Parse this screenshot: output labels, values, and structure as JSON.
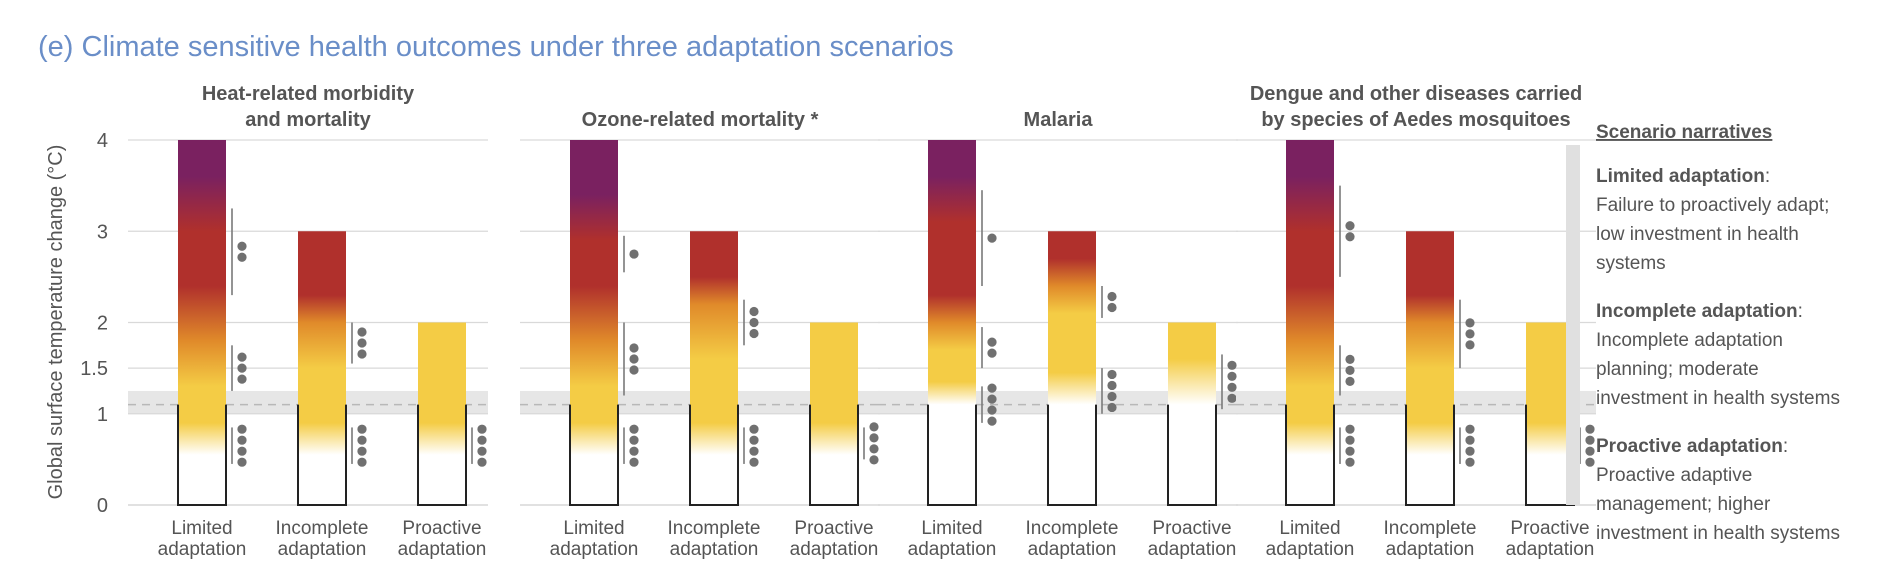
{
  "figure_title": "(e) Climate sensitive health outcomes under three adaptation scenarios",
  "colors": {
    "title": "#6a8ec8",
    "text": "#555555",
    "purple": "#7a2160",
    "red": "#b0302c",
    "orange": "#e08a2a",
    "yellow": "#f4cc45",
    "dots": "#707070",
    "band": "#e6e6e6"
  },
  "legend": {
    "heading": "Scenario narratives",
    "items": [
      {
        "name": "Limited adaptation",
        "suffix": ":",
        "lines": [
          "Failure to proactively adapt;",
          "low investment in health",
          "systems"
        ]
      },
      {
        "name": "Incomplete adaptation",
        "suffix": ":",
        "lines": [
          "Incomplete adaptation",
          "planning; moderate",
          "investment in health systems"
        ]
      },
      {
        "name": "Proactive adaptation",
        "suffix": ":",
        "lines": [
          "Proactive adaptive",
          "management; higher",
          "investment in health systems"
        ]
      }
    ]
  },
  "chart_data": {
    "type": "bar",
    "ylabel": "Global surface temperature change (°C)",
    "yticks": [
      {
        "value": 0,
        "label": "0"
      },
      {
        "value": 1,
        "label": "1"
      },
      {
        "value": 1.5,
        "label": "1.5"
      },
      {
        "value": 2,
        "label": "2"
      },
      {
        "value": 3,
        "label": "3"
      },
      {
        "value": 4,
        "label": "4"
      }
    ],
    "ylim": [
      0,
      4
    ],
    "current_warming": 1.1,
    "current_band": [
      1.0,
      1.25
    ],
    "categories": [
      {
        "l1": "Limited",
        "l2": "adaptation"
      },
      {
        "l1": "Incomplete",
        "l2": "adaptation"
      },
      {
        "l1": "Proactive",
        "l2": "adaptation"
      }
    ],
    "panels": [
      {
        "title_lines": [
          "Heat-related morbidity",
          "and mortality"
        ],
        "bars": [
          {
            "top": 4,
            "stops": [
              {
                "v": 0.55,
                "c": "white"
              },
              {
                "v": 0.9,
                "c": "yellow"
              },
              {
                "v": 1.3,
                "c": "yellow"
              },
              {
                "v": 1.8,
                "c": "orange"
              },
              {
                "v": 2.4,
                "c": "red"
              },
              {
                "v": 3.0,
                "c": "red"
              },
              {
                "v": 3.6,
                "c": "purple"
              },
              {
                "v": 4.0,
                "c": "purple"
              }
            ],
            "conf": [
              {
                "lo": 0.45,
                "hi": 0.85,
                "dots": 4
              },
              {
                "lo": 1.25,
                "hi": 1.75,
                "dots": 3
              },
              {
                "lo": 2.3,
                "hi": 3.25,
                "dots": 2
              }
            ]
          },
          {
            "top": 3,
            "stops": [
              {
                "v": 0.55,
                "c": "white"
              },
              {
                "v": 0.9,
                "c": "yellow"
              },
              {
                "v": 1.5,
                "c": "yellow"
              },
              {
                "v": 2.0,
                "c": "orange"
              },
              {
                "v": 2.3,
                "c": "red"
              },
              {
                "v": 3.0,
                "c": "red"
              }
            ],
            "conf": [
              {
                "lo": 0.45,
                "hi": 0.85,
                "dots": 4
              },
              {
                "lo": 1.55,
                "hi": 2.0,
                "dots": 3
              }
            ]
          },
          {
            "top": 2,
            "stops": [
              {
                "v": 0.55,
                "c": "white"
              },
              {
                "v": 0.9,
                "c": "yellow"
              },
              {
                "v": 2.0,
                "c": "yellow"
              }
            ],
            "conf": [
              {
                "lo": 0.45,
                "hi": 0.85,
                "dots": 4
              }
            ]
          }
        ]
      },
      {
        "title_lines": [
          "Ozone-related mortality *"
        ],
        "bars": [
          {
            "top": 4,
            "stops": [
              {
                "v": 0.55,
                "c": "white"
              },
              {
                "v": 0.9,
                "c": "yellow"
              },
              {
                "v": 1.3,
                "c": "yellow"
              },
              {
                "v": 1.8,
                "c": "orange"
              },
              {
                "v": 2.4,
                "c": "red"
              },
              {
                "v": 2.9,
                "c": "red"
              },
              {
                "v": 3.4,
                "c": "purple"
              },
              {
                "v": 4.0,
                "c": "purple"
              }
            ],
            "conf": [
              {
                "lo": 0.45,
                "hi": 0.85,
                "dots": 4
              },
              {
                "lo": 1.2,
                "hi": 2.0,
                "dots": 3
              },
              {
                "lo": 2.55,
                "hi": 2.95,
                "dots": 1
              }
            ]
          },
          {
            "top": 3,
            "stops": [
              {
                "v": 0.55,
                "c": "white"
              },
              {
                "v": 0.9,
                "c": "yellow"
              },
              {
                "v": 1.6,
                "c": "yellow"
              },
              {
                "v": 2.2,
                "c": "orange"
              },
              {
                "v": 2.5,
                "c": "red"
              },
              {
                "v": 3.0,
                "c": "red"
              }
            ],
            "conf": [
              {
                "lo": 0.45,
                "hi": 0.85,
                "dots": 4
              },
              {
                "lo": 1.75,
                "hi": 2.25,
                "dots": 3
              }
            ]
          },
          {
            "top": 2,
            "stops": [
              {
                "v": 0.55,
                "c": "white"
              },
              {
                "v": 0.9,
                "c": "yellow"
              },
              {
                "v": 2.0,
                "c": "yellow"
              }
            ],
            "conf": [
              {
                "lo": 0.5,
                "hi": 0.85,
                "dots": 4
              }
            ]
          }
        ]
      },
      {
        "title_lines": [
          "Malaria"
        ],
        "bars": [
          {
            "top": 4,
            "stops": [
              {
                "v": 1.1,
                "c": "white"
              },
              {
                "v": 1.35,
                "c": "yellow"
              },
              {
                "v": 1.7,
                "c": "yellow"
              },
              {
                "v": 2.0,
                "c": "orange"
              },
              {
                "v": 2.3,
                "c": "red"
              },
              {
                "v": 3.1,
                "c": "red"
              },
              {
                "v": 3.6,
                "c": "purple"
              },
              {
                "v": 4.0,
                "c": "purple"
              }
            ],
            "conf": [
              {
                "lo": 0.9,
                "hi": 1.3,
                "dots": 4
              },
              {
                "lo": 1.5,
                "hi": 1.95,
                "dots": 2
              },
              {
                "lo": 2.4,
                "hi": 3.45,
                "dots": 1
              }
            ]
          },
          {
            "top": 3,
            "stops": [
              {
                "v": 1.1,
                "c": "white"
              },
              {
                "v": 1.45,
                "c": "yellow"
              },
              {
                "v": 2.1,
                "c": "yellow"
              },
              {
                "v": 2.4,
                "c": "orange"
              },
              {
                "v": 2.7,
                "c": "red"
              },
              {
                "v": 3.0,
                "c": "red"
              }
            ],
            "conf": [
              {
                "lo": 1.0,
                "hi": 1.5,
                "dots": 4
              },
              {
                "lo": 2.05,
                "hi": 2.4,
                "dots": 2
              }
            ]
          },
          {
            "top": 2,
            "stops": [
              {
                "v": 1.1,
                "c": "white"
              },
              {
                "v": 1.6,
                "c": "yellow"
              },
              {
                "v": 2.0,
                "c": "yellow"
              }
            ],
            "conf": [
              {
                "lo": 1.05,
                "hi": 1.65,
                "dots": 4
              }
            ]
          }
        ]
      },
      {
        "title_lines": [
          "Dengue and other diseases carried",
          "by species of Aedes mosquitoes"
        ],
        "bars": [
          {
            "top": 4,
            "stops": [
              {
                "v": 0.55,
                "c": "white"
              },
              {
                "v": 0.9,
                "c": "yellow"
              },
              {
                "v": 1.3,
                "c": "yellow"
              },
              {
                "v": 1.8,
                "c": "orange"
              },
              {
                "v": 2.4,
                "c": "red"
              },
              {
                "v": 3.0,
                "c": "red"
              },
              {
                "v": 3.6,
                "c": "purple"
              },
              {
                "v": 4.0,
                "c": "purple"
              }
            ],
            "conf": [
              {
                "lo": 0.45,
                "hi": 0.85,
                "dots": 4
              },
              {
                "lo": 1.2,
                "hi": 1.75,
                "dots": 3
              },
              {
                "lo": 2.5,
                "hi": 3.5,
                "dots": 2
              }
            ]
          },
          {
            "top": 3,
            "stops": [
              {
                "v": 0.55,
                "c": "white"
              },
              {
                "v": 0.9,
                "c": "yellow"
              },
              {
                "v": 1.5,
                "c": "yellow"
              },
              {
                "v": 2.0,
                "c": "orange"
              },
              {
                "v": 2.3,
                "c": "red"
              },
              {
                "v": 3.0,
                "c": "red"
              }
            ],
            "conf": [
              {
                "lo": 0.45,
                "hi": 0.85,
                "dots": 4
              },
              {
                "lo": 1.5,
                "hi": 2.25,
                "dots": 3
              }
            ]
          },
          {
            "top": 2,
            "stops": [
              {
                "v": 0.55,
                "c": "white"
              },
              {
                "v": 0.9,
                "c": "yellow"
              },
              {
                "v": 2.0,
                "c": "yellow"
              }
            ],
            "conf": [
              {
                "lo": 0.45,
                "hi": 0.85,
                "dots": 4
              }
            ]
          }
        ]
      }
    ]
  }
}
